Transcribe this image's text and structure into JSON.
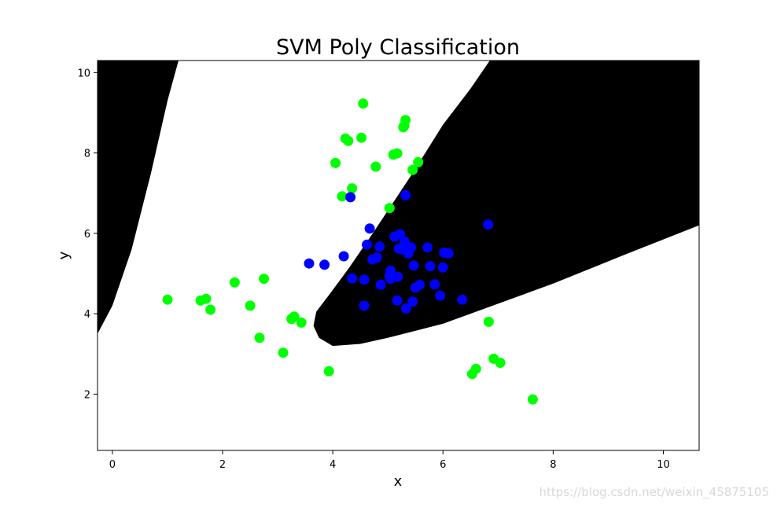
{
  "chart_data": {
    "type": "scatter",
    "title": "SVM Poly Classification",
    "xlabel": "x",
    "ylabel": "y",
    "xlim": [
      -0.27,
      10.65
    ],
    "ylim": [
      0.6,
      10.3
    ],
    "xticks": [
      0,
      2,
      4,
      6,
      8,
      10
    ],
    "yticks": [
      2,
      4,
      6,
      8,
      10
    ],
    "grid": false,
    "legend": "none",
    "background": {
      "description": "decision regions",
      "colors": {
        "class_0": "#ffffff",
        "class_1": "#000000"
      }
    },
    "series": [
      {
        "color": "#00ff00",
        "points": [
          [
            1.0,
            4.35
          ],
          [
            1.6,
            4.33
          ],
          [
            1.7,
            4.37
          ],
          [
            1.78,
            4.1
          ],
          [
            2.22,
            4.78
          ],
          [
            2.5,
            4.2
          ],
          [
            2.75,
            4.87
          ],
          [
            2.67,
            3.4
          ],
          [
            3.1,
            3.03
          ],
          [
            3.25,
            3.87
          ],
          [
            3.3,
            3.93
          ],
          [
            3.43,
            3.78
          ],
          [
            3.93,
            2.57
          ],
          [
            4.05,
            7.75
          ],
          [
            4.17,
            6.92
          ],
          [
            4.23,
            8.36
          ],
          [
            4.28,
            8.3
          ],
          [
            4.35,
            7.12
          ],
          [
            4.52,
            8.38
          ],
          [
            4.55,
            9.23
          ],
          [
            4.78,
            7.66
          ],
          [
            5.03,
            6.63
          ],
          [
            5.1,
            7.96
          ],
          [
            5.17,
            7.99
          ],
          [
            5.28,
            8.64
          ],
          [
            5.3,
            8.68
          ],
          [
            5.32,
            8.82
          ],
          [
            5.45,
            7.58
          ],
          [
            5.55,
            7.77
          ],
          [
            6.53,
            2.5
          ],
          [
            6.6,
            2.63
          ],
          [
            6.83,
            3.8
          ],
          [
            6.92,
            2.88
          ],
          [
            7.04,
            2.78
          ],
          [
            7.63,
            1.87
          ]
        ]
      },
      {
        "color": "#0000ff",
        "points": [
          [
            3.57,
            5.25
          ],
          [
            3.85,
            5.22
          ],
          [
            4.2,
            5.43
          ],
          [
            4.32,
            6.9
          ],
          [
            4.35,
            4.88
          ],
          [
            4.57,
            4.85
          ],
          [
            4.57,
            4.2
          ],
          [
            4.62,
            5.72
          ],
          [
            4.67,
            6.12
          ],
          [
            4.72,
            5.35
          ],
          [
            4.8,
            5.4
          ],
          [
            4.85,
            5.67
          ],
          [
            4.87,
            4.72
          ],
          [
            5.03,
            4.95
          ],
          [
            5.05,
            5.07
          ],
          [
            5.05,
            4.87
          ],
          [
            5.12,
            5.92
          ],
          [
            5.17,
            4.33
          ],
          [
            5.18,
            4.92
          ],
          [
            5.2,
            5.62
          ],
          [
            5.22,
            5.98
          ],
          [
            5.27,
            5.6
          ],
          [
            5.3,
            5.8
          ],
          [
            5.32,
            6.95
          ],
          [
            5.33,
            4.13
          ],
          [
            5.37,
            5.5
          ],
          [
            5.42,
            5.65
          ],
          [
            5.45,
            4.3
          ],
          [
            5.47,
            5.2
          ],
          [
            5.5,
            4.65
          ],
          [
            5.58,
            4.72
          ],
          [
            5.72,
            5.65
          ],
          [
            5.77,
            5.18
          ],
          [
            5.85,
            4.73
          ],
          [
            5.95,
            4.45
          ],
          [
            6.0,
            5.15
          ],
          [
            6.02,
            5.52
          ],
          [
            6.1,
            5.5
          ],
          [
            6.35,
            4.35
          ],
          [
            6.82,
            6.22
          ]
        ]
      }
    ]
  },
  "watermark": "https://blog.csdn.net/weixin_45875105"
}
